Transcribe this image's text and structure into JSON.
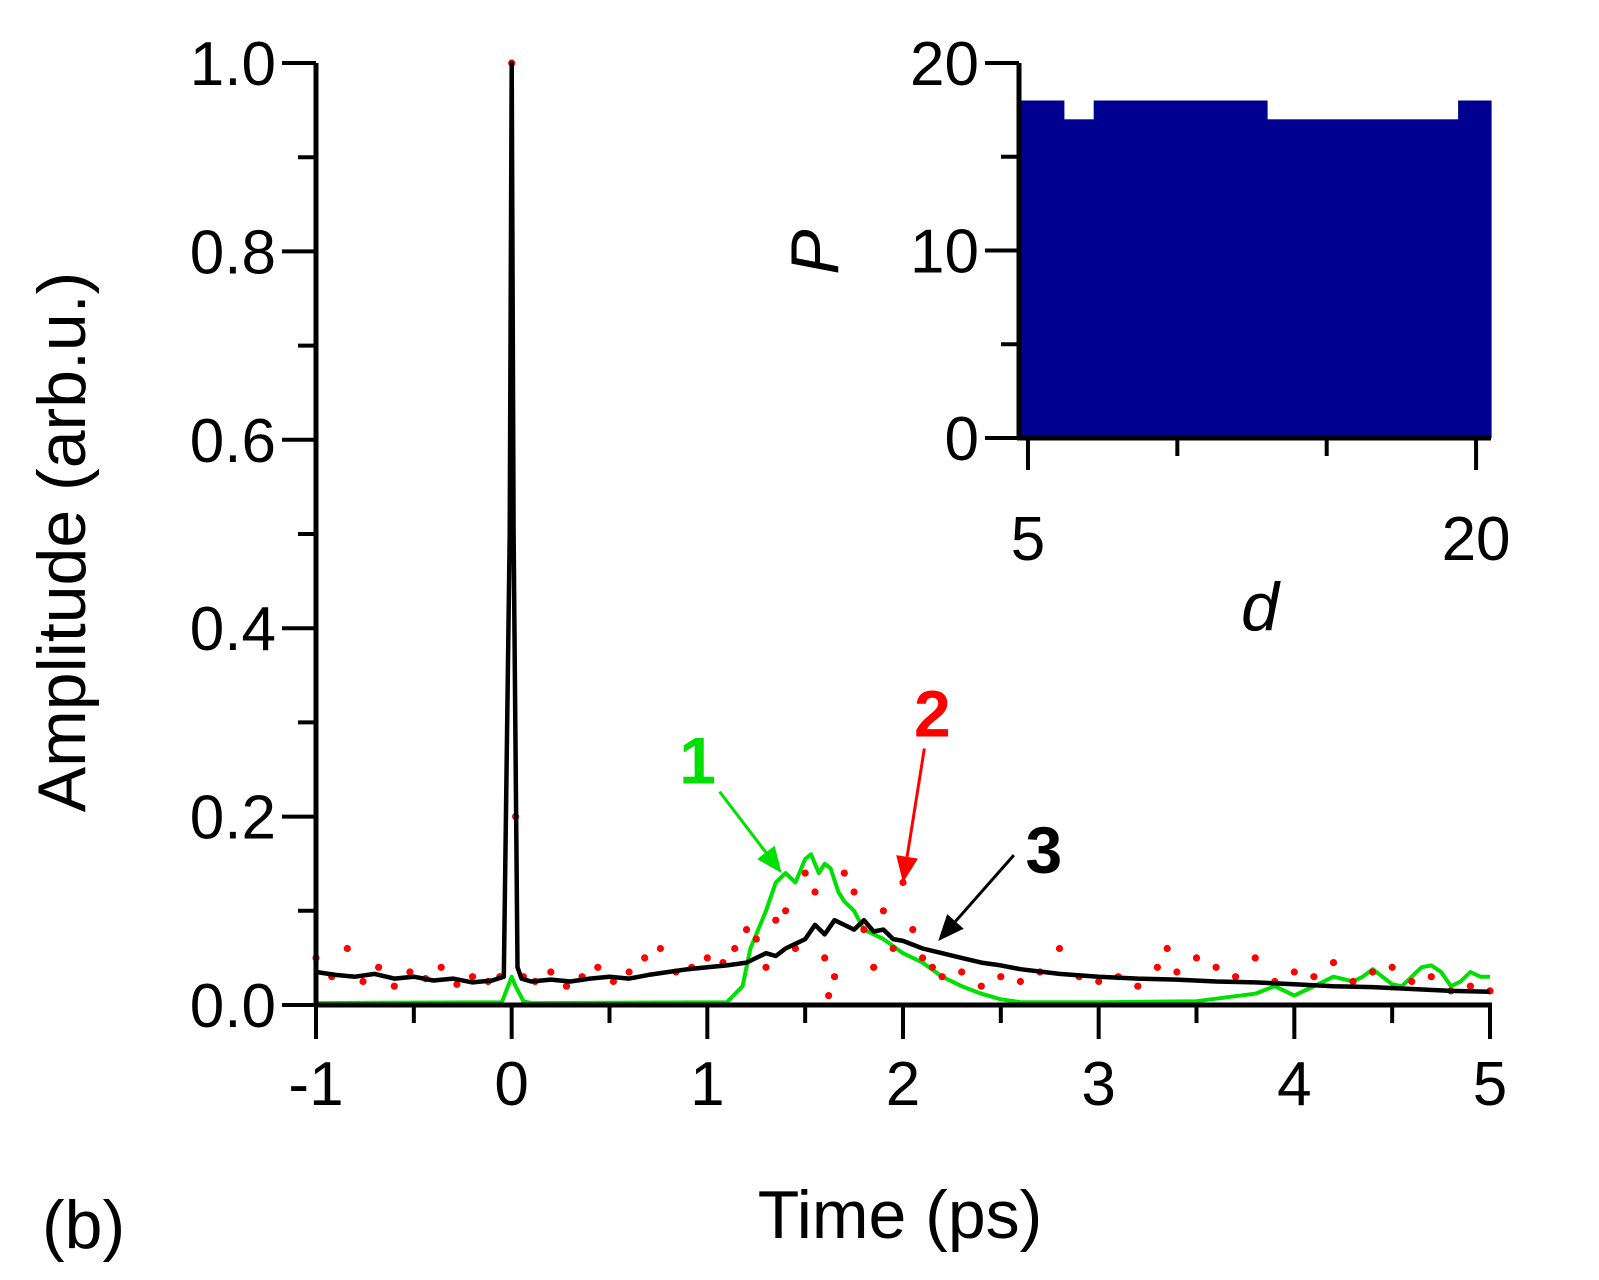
{
  "panel_label": "(b)",
  "colors": {
    "green": "#00e000",
    "red": "#ff0000",
    "black": "#000000",
    "navy": "#000090"
  },
  "chart_data": [
    {
      "type": "line",
      "xlabel": "Time (ps)",
      "ylabel": "Amplitude (arb.u.)",
      "xlim": [
        -1,
        5
      ],
      "ylim": [
        0,
        1.0
      ],
      "xticks": [
        "-1",
        "0",
        "1",
        "2",
        "3",
        "4",
        "5"
      ],
      "yticks": [
        "0.0",
        "0.2",
        "0.4",
        "0.6",
        "0.8",
        "1.0"
      ],
      "annotations": [
        {
          "label": "1",
          "series": "1",
          "color": "#00e000",
          "text_at": [
            0.95,
            0.235
          ],
          "arrow_to": [
            1.38,
            0.14
          ]
        },
        {
          "label": "2",
          "series": "2",
          "color": "#ff0000",
          "text_at": [
            2.15,
            0.285
          ],
          "arrow_to": [
            2.0,
            0.13
          ]
        },
        {
          "label": "3",
          "series": "3",
          "color": "#000000",
          "text_at": [
            2.72,
            0.14
          ],
          "arrow_to": [
            2.18,
            0.068
          ]
        }
      ],
      "series": [
        {
          "name": "1",
          "style": "line",
          "color": "#00e000",
          "x": [
            -1,
            -0.05,
            0,
            0.02,
            0.06,
            0.1,
            1.1,
            1.18,
            1.22,
            1.3,
            1.35,
            1.4,
            1.45,
            1.5,
            1.53,
            1.57,
            1.6,
            1.63,
            1.67,
            1.7,
            1.75,
            1.8,
            1.9,
            2.0,
            2.1,
            2.2,
            2.3,
            2.4,
            2.5,
            2.6,
            3.0,
            3.5,
            3.8,
            3.9,
            4.0,
            4.1,
            4.2,
            4.3,
            4.35,
            4.4,
            4.45,
            4.5,
            4.55,
            4.6,
            4.65,
            4.7,
            4.75,
            4.8,
            4.85,
            4.9,
            4.95,
            5.0
          ],
          "y": [
            0.002,
            0.003,
            0.03,
            0.02,
            0.004,
            0.002,
            0.003,
            0.02,
            0.06,
            0.1,
            0.13,
            0.14,
            0.13,
            0.155,
            0.16,
            0.14,
            0.15,
            0.145,
            0.12,
            0.11,
            0.1,
            0.08,
            0.07,
            0.055,
            0.045,
            0.03,
            0.02,
            0.012,
            0.006,
            0.003,
            0.003,
            0.004,
            0.012,
            0.02,
            0.01,
            0.02,
            0.03,
            0.025,
            0.03,
            0.038,
            0.03,
            0.022,
            0.02,
            0.03,
            0.04,
            0.042,
            0.035,
            0.02,
            0.025,
            0.035,
            0.03,
            0.03
          ]
        },
        {
          "name": "2",
          "style": "points",
          "color": "#ff0000",
          "x": [
            -1,
            -0.92,
            -0.84,
            -0.76,
            -0.68,
            -0.6,
            -0.52,
            -0.44,
            -0.36,
            -0.28,
            -0.2,
            -0.12,
            -0.06,
            0,
            0.02,
            0.06,
            0.12,
            0.2,
            0.28,
            0.36,
            0.44,
            0.52,
            0.6,
            0.68,
            0.76,
            0.84,
            0.92,
            1.0,
            1.08,
            1.14,
            1.2,
            1.25,
            1.3,
            1.35,
            1.4,
            1.45,
            1.5,
            1.55,
            1.6,
            1.62,
            1.65,
            1.7,
            1.75,
            1.8,
            1.85,
            1.9,
            1.95,
            2.0,
            2.05,
            2.1,
            2.15,
            2.2,
            2.3,
            2.4,
            2.5,
            2.6,
            2.7,
            2.8,
            2.9,
            3.0,
            3.1,
            3.2,
            3.3,
            3.35,
            3.4,
            3.5,
            3.6,
            3.7,
            3.8,
            3.9,
            4.0,
            4.1,
            4.2,
            4.3,
            4.4,
            4.5,
            4.6,
            4.7,
            4.8,
            4.9,
            5.0
          ],
          "y": [
            0.05,
            0.03,
            0.06,
            0.025,
            0.04,
            0.02,
            0.035,
            0.028,
            0.04,
            0.022,
            0.03,
            0.025,
            0.03,
            1.0,
            0.2,
            0.03,
            0.025,
            0.035,
            0.02,
            0.03,
            0.04,
            0.025,
            0.035,
            0.05,
            0.06,
            0.035,
            0.04,
            0.05,
            0.045,
            0.06,
            0.08,
            0.07,
            0.04,
            0.09,
            0.1,
            0.06,
            0.14,
            0.12,
            0.05,
            0.01,
            0.03,
            0.14,
            0.12,
            0.08,
            0.04,
            0.1,
            0.06,
            0.13,
            0.08,
            0.05,
            0.04,
            0.03,
            0.035,
            0.02,
            0.03,
            0.025,
            0.035,
            0.06,
            0.03,
            0.025,
            0.03,
            0.02,
            0.04,
            0.06,
            0.035,
            0.05,
            0.04,
            0.03,
            0.05,
            0.025,
            0.035,
            0.03,
            0.045,
            0.025,
            0.035,
            0.04,
            0.025,
            0.03,
            0.015,
            0.02,
            0.015
          ]
        },
        {
          "name": "3",
          "style": "line",
          "color": "#000000",
          "x": [
            -1,
            -0.9,
            -0.8,
            -0.7,
            -0.6,
            -0.5,
            -0.4,
            -0.3,
            -0.2,
            -0.1,
            -0.04,
            -0.01,
            0,
            0.01,
            0.03,
            0.05,
            0.1,
            0.2,
            0.3,
            0.4,
            0.5,
            0.6,
            0.7,
            0.8,
            0.9,
            1.0,
            1.1,
            1.2,
            1.25,
            1.3,
            1.35,
            1.4,
            1.45,
            1.5,
            1.55,
            1.6,
            1.65,
            1.7,
            1.75,
            1.8,
            1.85,
            1.9,
            1.95,
            2.0,
            2.1,
            2.2,
            2.3,
            2.4,
            2.5,
            2.6,
            2.8,
            3.0,
            3.2,
            3.4,
            3.6,
            3.8,
            4.0,
            4.2,
            4.4,
            4.6,
            4.8,
            5.0
          ],
          "y": [
            0.035,
            0.032,
            0.03,
            0.033,
            0.028,
            0.03,
            0.026,
            0.028,
            0.024,
            0.026,
            0.03,
            0.5,
            1.0,
            0.5,
            0.04,
            0.028,
            0.025,
            0.027,
            0.025,
            0.028,
            0.03,
            0.028,
            0.032,
            0.035,
            0.038,
            0.04,
            0.042,
            0.045,
            0.05,
            0.055,
            0.052,
            0.06,
            0.065,
            0.07,
            0.085,
            0.075,
            0.09,
            0.085,
            0.08,
            0.09,
            0.078,
            0.08,
            0.07,
            0.068,
            0.06,
            0.055,
            0.05,
            0.045,
            0.042,
            0.038,
            0.033,
            0.03,
            0.028,
            0.027,
            0.025,
            0.024,
            0.022,
            0.02,
            0.019,
            0.017,
            0.015,
            0.014
          ]
        }
      ]
    },
    {
      "type": "bar",
      "inset": true,
      "xlabel": "d",
      "ylabel": "P",
      "xlim": [
        4.7,
        20.5
      ],
      "ylim": [
        0,
        20
      ],
      "xticks": [
        "5",
        "20"
      ],
      "yticks": [
        "0",
        "10",
        "20"
      ],
      "color": "#000090",
      "bins": [
        {
          "from": 4.7,
          "to": 6.2,
          "value": 18
        },
        {
          "from": 6.2,
          "to": 7.2,
          "value": 17
        },
        {
          "from": 7.2,
          "to": 13.0,
          "value": 18
        },
        {
          "from": 13.0,
          "to": 19.4,
          "value": 17
        },
        {
          "from": 19.4,
          "to": 20.5,
          "value": 18
        }
      ]
    }
  ]
}
